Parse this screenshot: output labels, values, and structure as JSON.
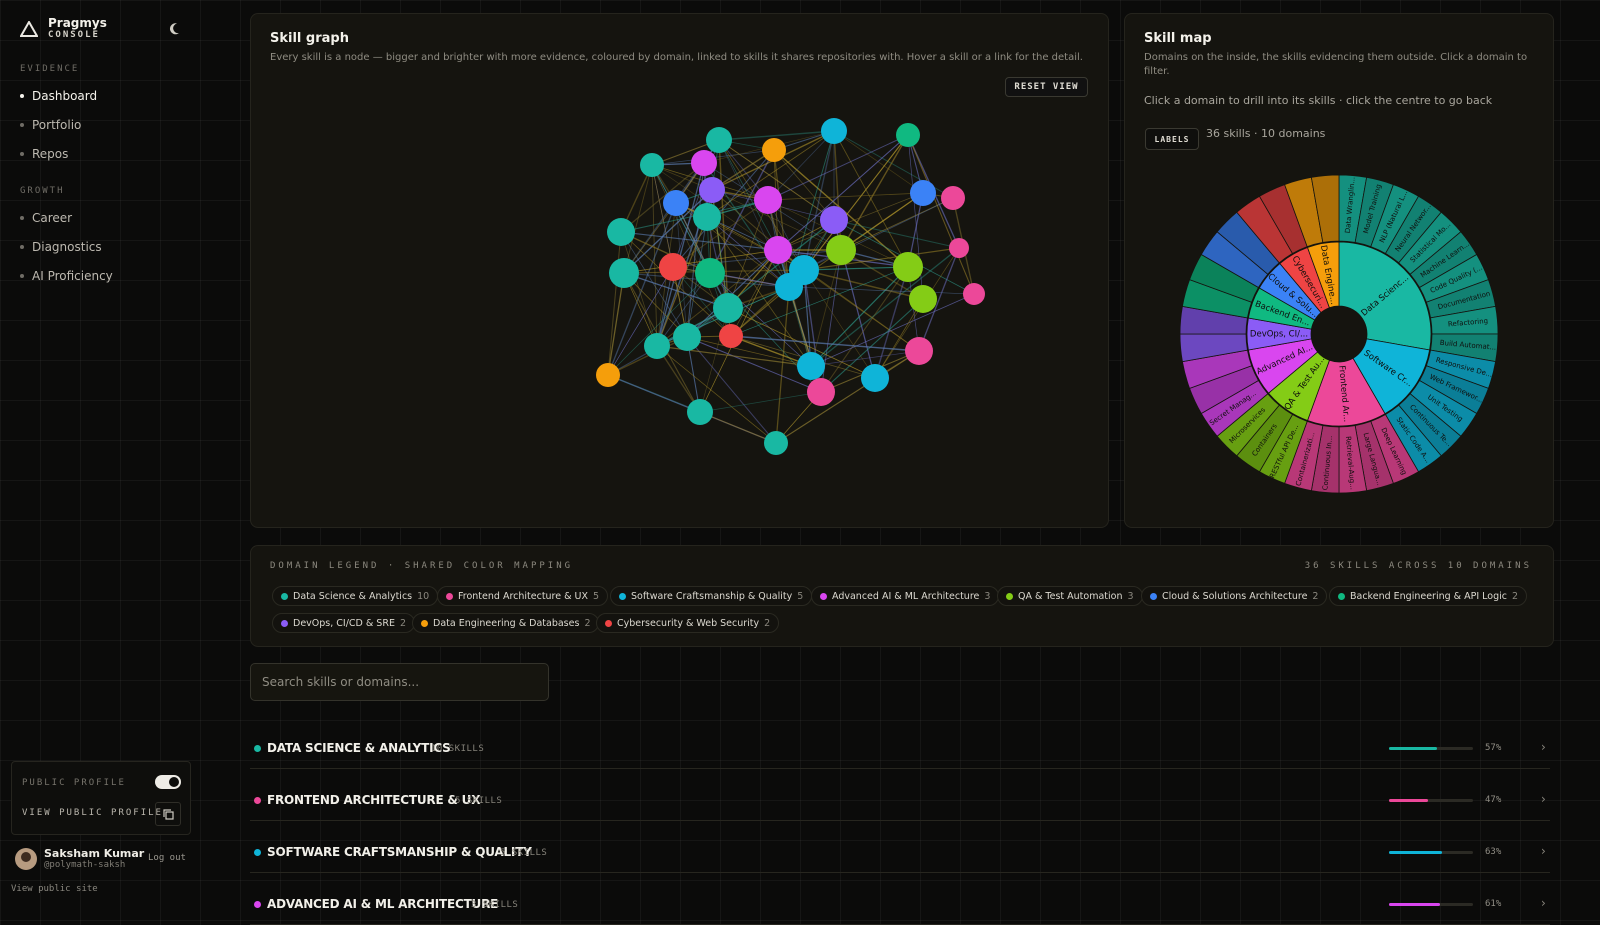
{
  "brand": {
    "name": "Pragmys",
    "sub": "CONSOLE"
  },
  "nav": {
    "evidence_label": "EVIDENCE",
    "growth_label": "GROWTH",
    "items": [
      {
        "label": "Dashboard",
        "active": true
      },
      {
        "label": "Portfolio"
      },
      {
        "label": "Repos"
      },
      {
        "label": "Career"
      },
      {
        "label": "Diagnostics"
      },
      {
        "label": "AI Proficiency"
      }
    ]
  },
  "profile": {
    "public_profile_label": "PUBLIC PROFILE",
    "public_enabled": true,
    "view_public_label": "VIEW PUBLIC PROFILE",
    "user_name": "Saksham Kumar",
    "handle": "@polymath-saksh",
    "logout": "Log out",
    "public_site": "View public site"
  },
  "skill_graph": {
    "title": "Skill graph",
    "desc": "Every skill is a node — bigger and brighter with more evidence, coloured by domain, linked to skills it shares repositories with. Hover a skill or a link for the detail.",
    "reset": "RESET VIEW"
  },
  "skill_map": {
    "title": "Skill map",
    "desc": "Domains on the inside, the skills evidencing them outside. Click a domain to filter.",
    "hint": "Click a domain to drill into its skills · click the centre to go back",
    "labels_btn": "LABELS",
    "count": "36 skills · 10 domains",
    "inner_labels": [
      "Data Scienc...",
      "Software Cr...",
      "Frontend Ar...",
      "QA & Test Au...",
      "Advanced AI...",
      "DevOps, CI/...",
      "Backend En...",
      "Cloud & Solu...",
      "Cybersecuri...",
      "Data Engine..."
    ],
    "outer_labels": [
      "Data Wranglin...",
      "Model Training",
      "NLP (Natural L...",
      "Neural Networ...",
      "Statistical Mo...",
      "Machine Learn...",
      "Code Quality (...",
      "Documentation",
      "Refactoring",
      "Build Automat...",
      "Responsive De...",
      "Web Framewor...",
      "Unit Testing",
      "Continuous Te...",
      "Static Code A...",
      "Deep Learning",
      "Large Langua...",
      "Retrieval-Aug...",
      "Continuous In...",
      "Containerizati...",
      "RESTful API De...",
      "Containers",
      "Microservices",
      "Secret Manag..."
    ]
  },
  "legend": {
    "title": "DOMAIN LEGEND · SHARED COLOR MAPPING",
    "count": "36 SKILLS ACROSS 10 DOMAINS",
    "items": [
      {
        "name": "Data Science & Analytics",
        "count": "10",
        "color": "#19b8a3"
      },
      {
        "name": "Frontend Architecture & UX",
        "count": "5",
        "color": "#ec4899"
      },
      {
        "name": "Software Craftsmanship & Quality",
        "count": "5",
        "color": "#0fb4d8"
      },
      {
        "name": "Advanced AI & ML Architecture",
        "count": "3",
        "color": "#d946ef"
      },
      {
        "name": "QA & Test Automation",
        "count": "3",
        "color": "#84cc16"
      },
      {
        "name": "Cloud & Solutions Architecture",
        "count": "2",
        "color": "#3b82f6"
      },
      {
        "name": "Backend Engineering & API Logic",
        "count": "2",
        "color": "#10b981"
      },
      {
        "name": "DevOps, CI/CD & SRE",
        "count": "2",
        "color": "#8b5cf6"
      },
      {
        "name": "Data Engineering & Databases",
        "count": "2",
        "color": "#f59e0b"
      },
      {
        "name": "Cybersecurity & Web Security",
        "count": "2",
        "color": "#ef4444"
      }
    ]
  },
  "search": {
    "placeholder": "Search skills or domains..."
  },
  "domains": [
    {
      "name": "DATA SCIENCE & ANALYTICS",
      "skills": "10 SKILLS",
      "pct": 57,
      "pct_label": "57%",
      "color": "#19b8a3"
    },
    {
      "name": "FRONTEND ARCHITECTURE & UX",
      "skills": "5 SKILLS",
      "pct": 47,
      "pct_label": "47%",
      "color": "#ec4899"
    },
    {
      "name": "SOFTWARE CRAFTSMANSHIP & QUALITY",
      "skills": "5 SKILLS",
      "pct": 63,
      "pct_label": "63%",
      "color": "#0fb4d8"
    },
    {
      "name": "ADVANCED AI & ML ARCHITECTURE",
      "skills": "3 SKILLS",
      "pct": 61,
      "pct_label": "61%",
      "color": "#d946ef"
    }
  ]
}
